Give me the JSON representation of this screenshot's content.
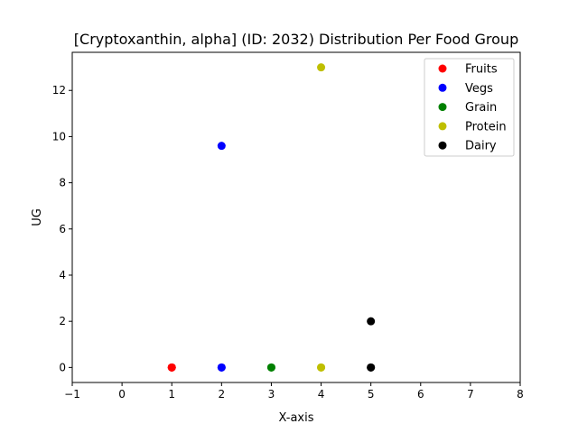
{
  "chart_data": {
    "type": "scatter",
    "title": "[Cryptoxanthin, alpha] (ID: 2032) Distribution Per Food Group",
    "xlabel": "X-axis",
    "ylabel": "UG",
    "xlim": [
      -1,
      8
    ],
    "ylim": [
      -0.65,
      13.65
    ],
    "xticks": [
      -1,
      0,
      1,
      2,
      3,
      4,
      5,
      6,
      7,
      8
    ],
    "yticks": [
      0,
      2,
      4,
      6,
      8,
      10,
      12
    ],
    "grid": false,
    "legend_position": "top-right",
    "series": [
      {
        "name": "Fruits",
        "color": "#ff0000",
        "points": [
          [
            1,
            0
          ],
          [
            1,
            0
          ],
          [
            1,
            0
          ]
        ]
      },
      {
        "name": "Vegs",
        "color": "#0000ff",
        "points": [
          [
            2,
            9.6
          ],
          [
            2,
            0
          ],
          [
            2,
            0
          ]
        ]
      },
      {
        "name": "Grain",
        "color": "#008000",
        "points": [
          [
            3,
            0
          ],
          [
            3,
            0
          ]
        ]
      },
      {
        "name": "Protein",
        "color": "#bfbf00",
        "points": [
          [
            4,
            13.0
          ],
          [
            4,
            0
          ],
          [
            4,
            0
          ]
        ]
      },
      {
        "name": "Dairy",
        "color": "#000000",
        "points": [
          [
            5,
            2.0
          ],
          [
            5,
            0
          ],
          [
            5,
            0
          ]
        ]
      }
    ]
  }
}
